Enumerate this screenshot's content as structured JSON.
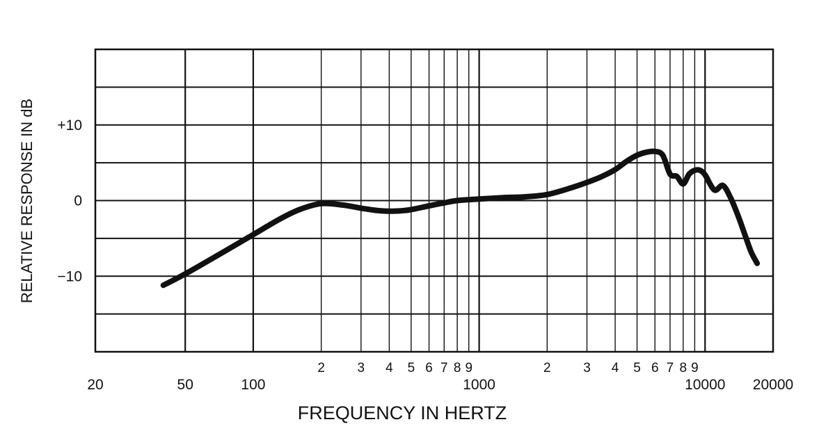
{
  "chart_data": {
    "type": "line",
    "title": "",
    "xlabel": "FREQUENCY IN HERTZ",
    "ylabel": "RELATIVE RESPONSE IN dB",
    "x_scale": "log",
    "xlim": [
      20,
      20000
    ],
    "ylim": [
      -20,
      20
    ],
    "grid": true,
    "x_ticks": [
      {
        "value": 20,
        "label": "20",
        "major": true
      },
      {
        "value": 50,
        "label": "50",
        "major": true
      },
      {
        "value": 100,
        "label": "100",
        "major": true
      },
      {
        "value": 200,
        "label": "2",
        "major": false
      },
      {
        "value": 300,
        "label": "3",
        "major": false
      },
      {
        "value": 400,
        "label": "4",
        "major": false
      },
      {
        "value": 500,
        "label": "5",
        "major": false
      },
      {
        "value": 600,
        "label": "6",
        "major": false
      },
      {
        "value": 700,
        "label": "7",
        "major": false
      },
      {
        "value": 800,
        "label": "8",
        "major": false
      },
      {
        "value": 900,
        "label": "9",
        "major": false
      },
      {
        "value": 1000,
        "label": "1000",
        "major": true
      },
      {
        "value": 2000,
        "label": "2",
        "major": false
      },
      {
        "value": 3000,
        "label": "3",
        "major": false
      },
      {
        "value": 4000,
        "label": "4",
        "major": false
      },
      {
        "value": 5000,
        "label": "5",
        "major": false
      },
      {
        "value": 6000,
        "label": "6",
        "major": false
      },
      {
        "value": 7000,
        "label": "7",
        "major": false
      },
      {
        "value": 8000,
        "label": "8",
        "major": false
      },
      {
        "value": 9000,
        "label": "9",
        "major": false
      },
      {
        "value": 10000,
        "label": "10000",
        "major": true
      },
      {
        "value": 20000,
        "label": "20000",
        "major": true
      }
    ],
    "y_ticks": [
      {
        "value": 10,
        "label": "+10"
      },
      {
        "value": 0,
        "label": "0"
      },
      {
        "value": -10,
        "label": "−10"
      }
    ],
    "y_gridlines": [
      -20,
      -15,
      -10,
      -5,
      0,
      5,
      10,
      15,
      20
    ],
    "line_color": "#111111",
    "series": [
      {
        "x": [
          40,
          50,
          70,
          100,
          130,
          160,
          200,
          250,
          300,
          350,
          400,
          450,
          500,
          600,
          700,
          800,
          1000,
          1300,
          1600,
          2000,
          2500,
          3000,
          3500,
          4000,
          4500,
          5000,
          5500,
          6000,
          6500,
          7000,
          7500,
          8000,
          8500,
          9000,
          9500,
          10000,
          11000,
          12000,
          13000,
          14000,
          15000,
          16000,
          17000
        ],
        "y": [
          -11.2,
          -9.7,
          -7.2,
          -4.5,
          -2.5,
          -1.2,
          -0.4,
          -0.6,
          -1.0,
          -1.3,
          -1.4,
          -1.35,
          -1.2,
          -0.7,
          -0.3,
          0.0,
          0.2,
          0.4,
          0.5,
          0.8,
          1.6,
          2.4,
          3.2,
          4.1,
          5.2,
          6.0,
          6.4,
          6.5,
          6.0,
          3.5,
          3.2,
          2.2,
          3.5,
          4.0,
          4.0,
          3.4,
          1.4,
          2.0,
          0.3,
          -2.0,
          -4.5,
          -6.8,
          -8.3
        ]
      }
    ]
  }
}
